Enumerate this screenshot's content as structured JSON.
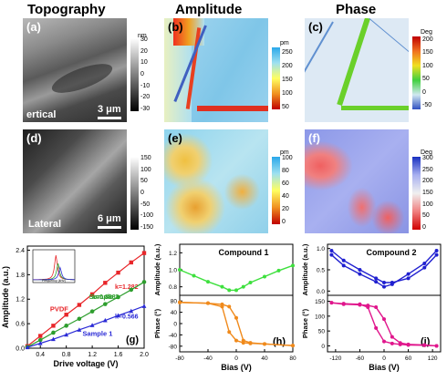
{
  "titles": {
    "topography": "Topography",
    "amplitude": "Amplitude",
    "phase": "Phase"
  },
  "panels": {
    "a": {
      "label": "(a)",
      "scale": "3 μm",
      "mode": "ertical",
      "unit": "nm",
      "ticks": [
        "30",
        "20",
        "10",
        "0",
        "-10",
        "-20",
        "-30"
      ]
    },
    "b": {
      "label": "(b)",
      "unit": "pm",
      "ticks": [
        "250",
        "200",
        "150",
        "100",
        "50"
      ]
    },
    "c": {
      "label": "(c)",
      "unit": "Deg",
      "ticks": [
        "200",
        "150",
        "100",
        "50",
        "0",
        "-50"
      ]
    },
    "d": {
      "label": "(d)",
      "scale": "6 μm",
      "mode": "Lateral",
      "ticks": [
        "150",
        "100",
        "50",
        "0",
        "-50",
        "-100",
        "-150"
      ]
    },
    "e": {
      "label": "(e)",
      "unit": "pm",
      "ticks": [
        "100",
        "80",
        "60",
        "40",
        "20",
        "0"
      ]
    },
    "f": {
      "label": "(f)",
      "unit": "Deg",
      "ticks": [
        "300",
        "250",
        "200",
        "150",
        "100",
        "50",
        "0"
      ]
    }
  },
  "colors": {
    "pvdf": "#e8262a",
    "sample2": "#2e9e2e",
    "sample1": "#2b2bd6",
    "compound1_amp": "#3ee03e",
    "compound1_phase": "#f08a1c",
    "compound2_amp": "#2020d0",
    "compound2_phase": "#e0168c"
  },
  "chart_data": [
    {
      "panel": "g",
      "label": "(g)",
      "type": "scatter",
      "xlabel": "Drive voltage (V)",
      "ylabel": "Amplitude (a.u.)",
      "xlim": [
        0.2,
        2.0
      ],
      "ylim": [
        0.0,
        2.5
      ],
      "xticks": [
        "0.4",
        "0.8",
        "1.2",
        "1.6",
        "2.0"
      ],
      "yticks": [
        "0.0",
        "0.6",
        "1.2",
        "1.8",
        "2.4"
      ],
      "series": [
        {
          "name": "PVDF",
          "slope": "k=1.282",
          "x": [
            0.2,
            0.4,
            0.6,
            0.8,
            1.0,
            1.2,
            1.4,
            1.6,
            1.8,
            2.0
          ],
          "y": [
            0.05,
            0.3,
            0.55,
            0.82,
            1.06,
            1.32,
            1.6,
            1.85,
            2.1,
            2.33
          ]
        },
        {
          "name": "Sample 2",
          "slope": "k=0.888",
          "x": [
            0.2,
            0.4,
            0.6,
            0.8,
            1.0,
            1.2,
            1.4,
            1.6,
            1.8,
            2.0
          ],
          "y": [
            0.03,
            0.2,
            0.38,
            0.55,
            0.72,
            0.9,
            1.08,
            1.25,
            1.43,
            1.62
          ]
        },
        {
          "name": "Sample 1",
          "slope": "k=0.566",
          "x": [
            0.2,
            0.4,
            0.6,
            0.8,
            1.0,
            1.2,
            1.4,
            1.6,
            1.8,
            2.0
          ],
          "y": [
            0.02,
            0.12,
            0.22,
            0.33,
            0.45,
            0.56,
            0.68,
            0.8,
            0.91,
            1.03
          ]
        }
      ],
      "inset": {
        "xlabel": "Frequency (kHz)"
      }
    },
    {
      "panel": "h",
      "label": "(h)",
      "type": "line",
      "title": "Compound 1",
      "xlabel": "Bias (V)",
      "ylabel_top": "Amplitude (a.u.)",
      "ylabel_bottom": "Phase (°)",
      "xlim": [
        -80,
        80
      ],
      "xticks": [
        "-80",
        "-40",
        "0",
        "40",
        "80"
      ],
      "amp_yticks": [
        "1.2",
        "1.0",
        "0.8"
      ],
      "amp_ylim": [
        0.7,
        1.3
      ],
      "phase_yticks": [
        "80",
        "40",
        "0",
        "-40",
        "-80"
      ],
      "phase_ylim": [
        -100,
        100
      ],
      "amp_x": [
        -80,
        -60,
        -40,
        -20,
        -10,
        0,
        10,
        20,
        40,
        60,
        80
      ],
      "amp_y": [
        1.0,
        0.93,
        0.86,
        0.8,
        0.76,
        0.76,
        0.8,
        0.85,
        0.92,
        0.99,
        1.05
      ],
      "phase_x": [
        -80,
        -40,
        -20,
        -10,
        0,
        10,
        20,
        40,
        80
      ],
      "phase_fwd_y": [
        75,
        72,
        68,
        60,
        20,
        -60,
        -68,
        -72,
        -78
      ],
      "phase_rev_y": [
        75,
        72,
        60,
        -30,
        -60,
        -68,
        -70,
        -72,
        -78
      ]
    },
    {
      "panel": "i",
      "label": "(i)",
      "type": "line",
      "title": "Compound 2",
      "xlabel": "Bias (V)",
      "ylabel_top": "Amplitude (a.u.)",
      "ylabel_bottom": "Phase (°)",
      "xlim": [
        -140,
        140
      ],
      "xticks": [
        "-120",
        "-60",
        "0",
        "60",
        "120"
      ],
      "amp_yticks": [
        "1.0",
        "0.5",
        "0.0"
      ],
      "amp_ylim": [
        -0.1,
        1.1
      ],
      "phase_yticks": [
        "150",
        "100",
        "50",
        "0"
      ],
      "phase_ylim": [
        -20,
        170
      ],
      "amp_x": [
        -130,
        -100,
        -60,
        -20,
        0,
        20,
        60,
        100,
        130
      ],
      "amp_fwd_y": [
        0.95,
        0.72,
        0.5,
        0.3,
        0.2,
        0.2,
        0.3,
        0.55,
        0.85
      ],
      "amp_rev_y": [
        0.85,
        0.6,
        0.4,
        0.22,
        0.1,
        0.16,
        0.4,
        0.65,
        0.95
      ],
      "phase_x": [
        -130,
        -100,
        -60,
        -40,
        -20,
        0,
        20,
        40,
        60,
        100,
        130
      ],
      "phase_fwd_y": [
        145,
        140,
        138,
        136,
        130,
        90,
        30,
        10,
        5,
        3,
        0
      ],
      "phase_rev_y": [
        145,
        142,
        140,
        130,
        60,
        15,
        8,
        5,
        3,
        2,
        0
      ]
    }
  ]
}
